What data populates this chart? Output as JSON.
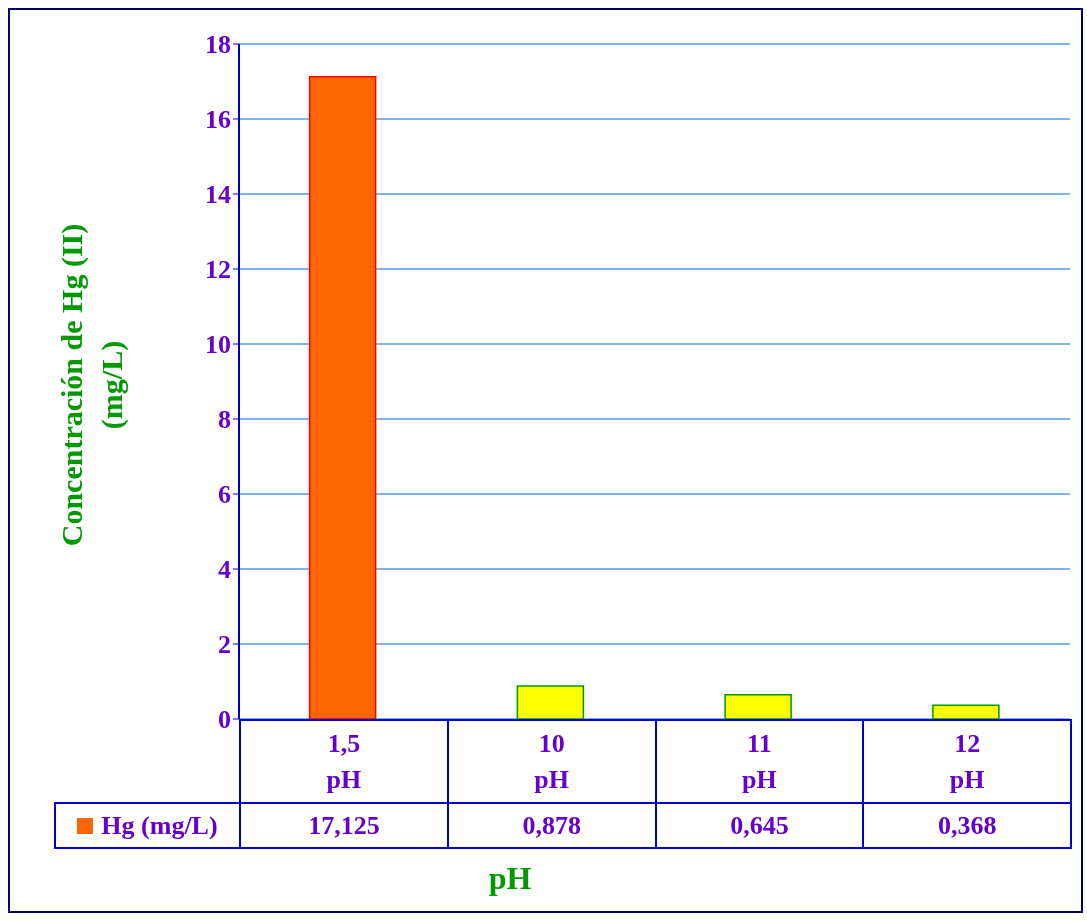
{
  "chart_data": {
    "type": "bar",
    "xlabel": "pH",
    "ylabel": "Concentración de Hg (II) (mg/L)",
    "categories": [
      "1,5 pH",
      "10 pH",
      "11 pH",
      "12 pH"
    ],
    "series": [
      {
        "name": "Hg (mg/L)",
        "color": "#ff6600",
        "colors": [
          "#ff6600",
          "#ffff00",
          "#ffff00",
          "#ffff00"
        ],
        "values": [
          17.125,
          0.878,
          0.645,
          0.368
        ],
        "value_labels": [
          "17,125",
          "0,878",
          "0,645",
          "0,368"
        ]
      }
    ],
    "ylim": [
      0,
      18
    ],
    "yticks": [
      0,
      2,
      4,
      6,
      8,
      10,
      12,
      14,
      16,
      18
    ],
    "grid": "y",
    "legend": "bottom left"
  }
}
